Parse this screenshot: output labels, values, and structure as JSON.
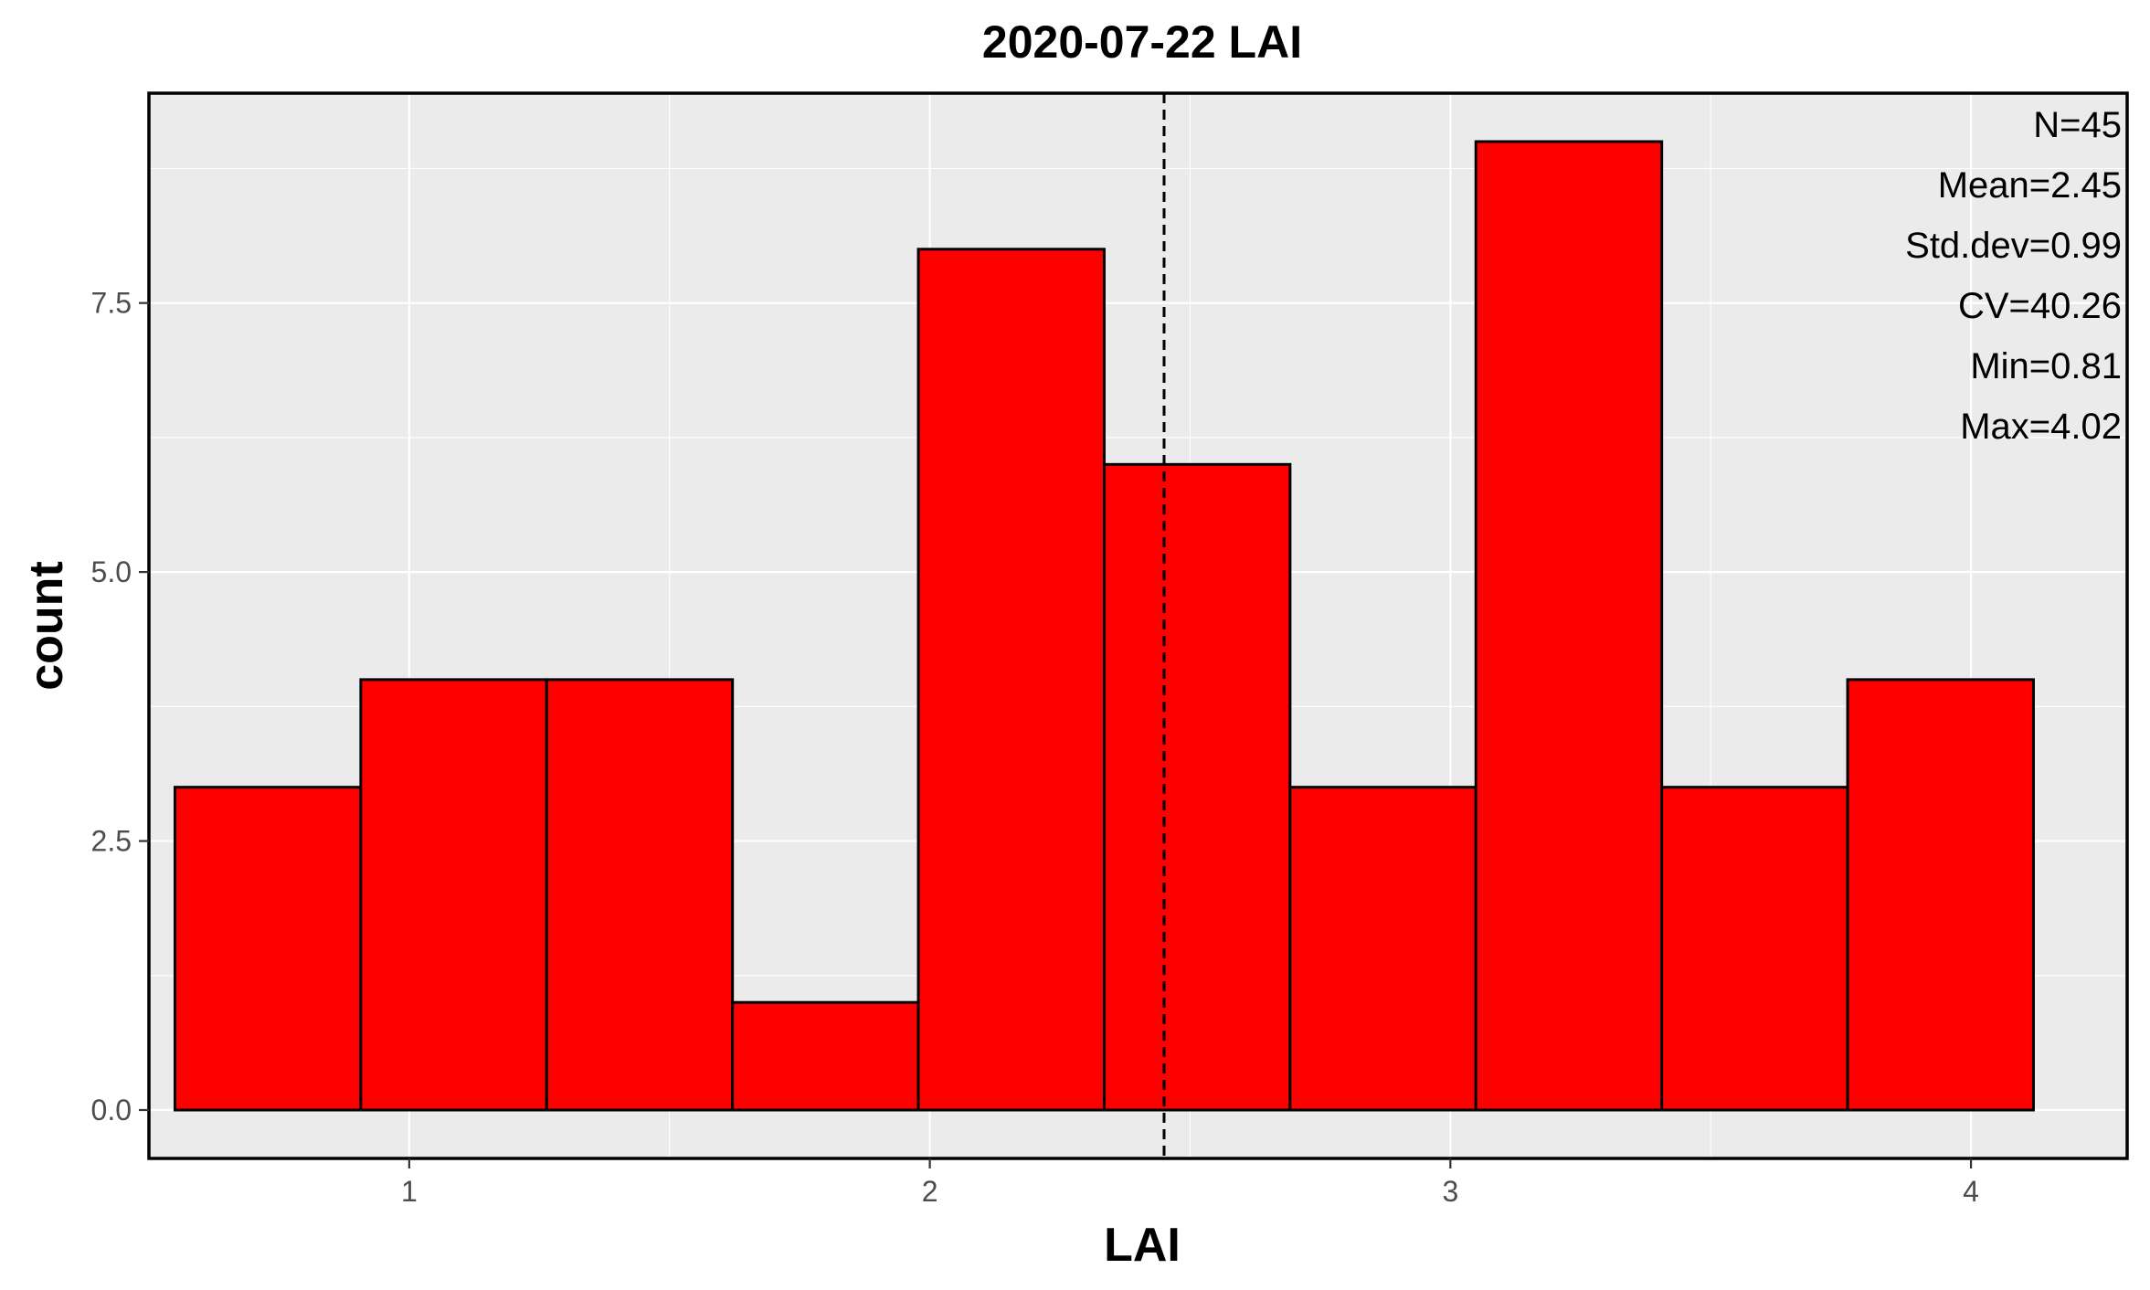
{
  "chart_data": {
    "type": "bar",
    "title": "2020-07-22 LAI",
    "xlabel": "LAI",
    "ylabel": "count",
    "xlim": [
      0.5,
      4.3
    ],
    "ylim": [
      -0.45,
      9.45
    ],
    "x_ticks": [
      1,
      2,
      3,
      4
    ],
    "x_tick_labels": [
      "1",
      "2",
      "3",
      "4"
    ],
    "y_ticks": [
      0,
      2.5,
      5,
      7.5
    ],
    "y_tick_labels": [
      "0.0",
      "2.5",
      "5.0",
      "7.5"
    ],
    "bins": [
      {
        "x_start": 0.55,
        "x_end": 0.907,
        "count": 3
      },
      {
        "x_start": 0.907,
        "x_end": 1.264,
        "count": 4
      },
      {
        "x_start": 1.264,
        "x_end": 1.621,
        "count": 4
      },
      {
        "x_start": 1.621,
        "x_end": 1.978,
        "count": 1
      },
      {
        "x_start": 1.978,
        "x_end": 2.335,
        "count": 8
      },
      {
        "x_start": 2.335,
        "x_end": 2.692,
        "count": 6
      },
      {
        "x_start": 2.692,
        "x_end": 3.049,
        "count": 3
      },
      {
        "x_start": 3.049,
        "x_end": 3.406,
        "count": 9
      },
      {
        "x_start": 3.406,
        "x_end": 3.763,
        "count": 3
      },
      {
        "x_start": 3.763,
        "x_end": 4.12,
        "count": 4
      }
    ],
    "mean_line": {
      "x": 2.45,
      "style": "dashed"
    },
    "bar_color": "#ff0000",
    "panel_background": "#ebebeb",
    "grid": true,
    "annotations": [
      "N=45",
      "Mean=2.45",
      "Std.dev=0.99",
      "CV=40.26",
      "Min=0.81",
      "Max=4.02"
    ]
  }
}
